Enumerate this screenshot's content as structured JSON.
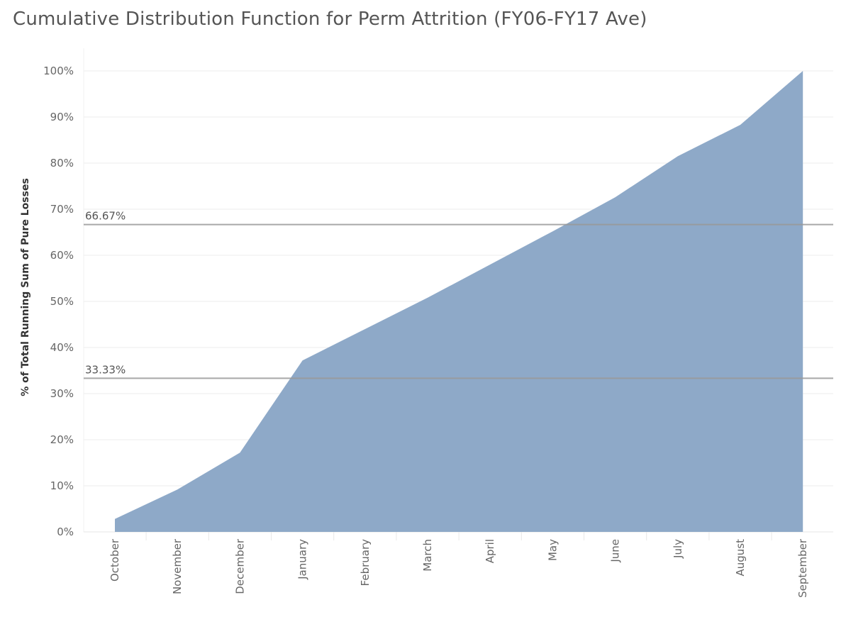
{
  "chart_data": {
    "type": "area",
    "title": "Cumulative Distribution Function for Perm Attrition (FY06-FY17 Ave)",
    "xlabel": "",
    "ylabel": "% of Total Running Sum of Pure Losses",
    "categories": [
      "October",
      "November",
      "December",
      "January",
      "February",
      "March",
      "April",
      "May",
      "June",
      "July",
      "August",
      "September"
    ],
    "series": [
      {
        "values": [
          2.8,
          9.2,
          17.2,
          37.2,
          44.0,
          50.8,
          58.0,
          65.2,
          72.6,
          81.5,
          88.3,
          100.0
        ]
      }
    ],
    "ylim": [
      0,
      100
    ],
    "yticks": [
      0,
      10,
      20,
      30,
      40,
      50,
      60,
      70,
      80,
      90,
      100
    ],
    "ytick_labels": [
      "0%",
      "10%",
      "20%",
      "30%",
      "40%",
      "50%",
      "60%",
      "70%",
      "80%",
      "90%",
      "100%"
    ],
    "reference_lines": [
      {
        "value": 66.67,
        "label": "66.67%"
      },
      {
        "value": 33.33,
        "label": "33.33%"
      }
    ],
    "grid": true,
    "legend": "none",
    "colors": {
      "area_fill": "#8ea9c8",
      "reference_line": "#999999",
      "gridline": "#eeeeee"
    }
  }
}
